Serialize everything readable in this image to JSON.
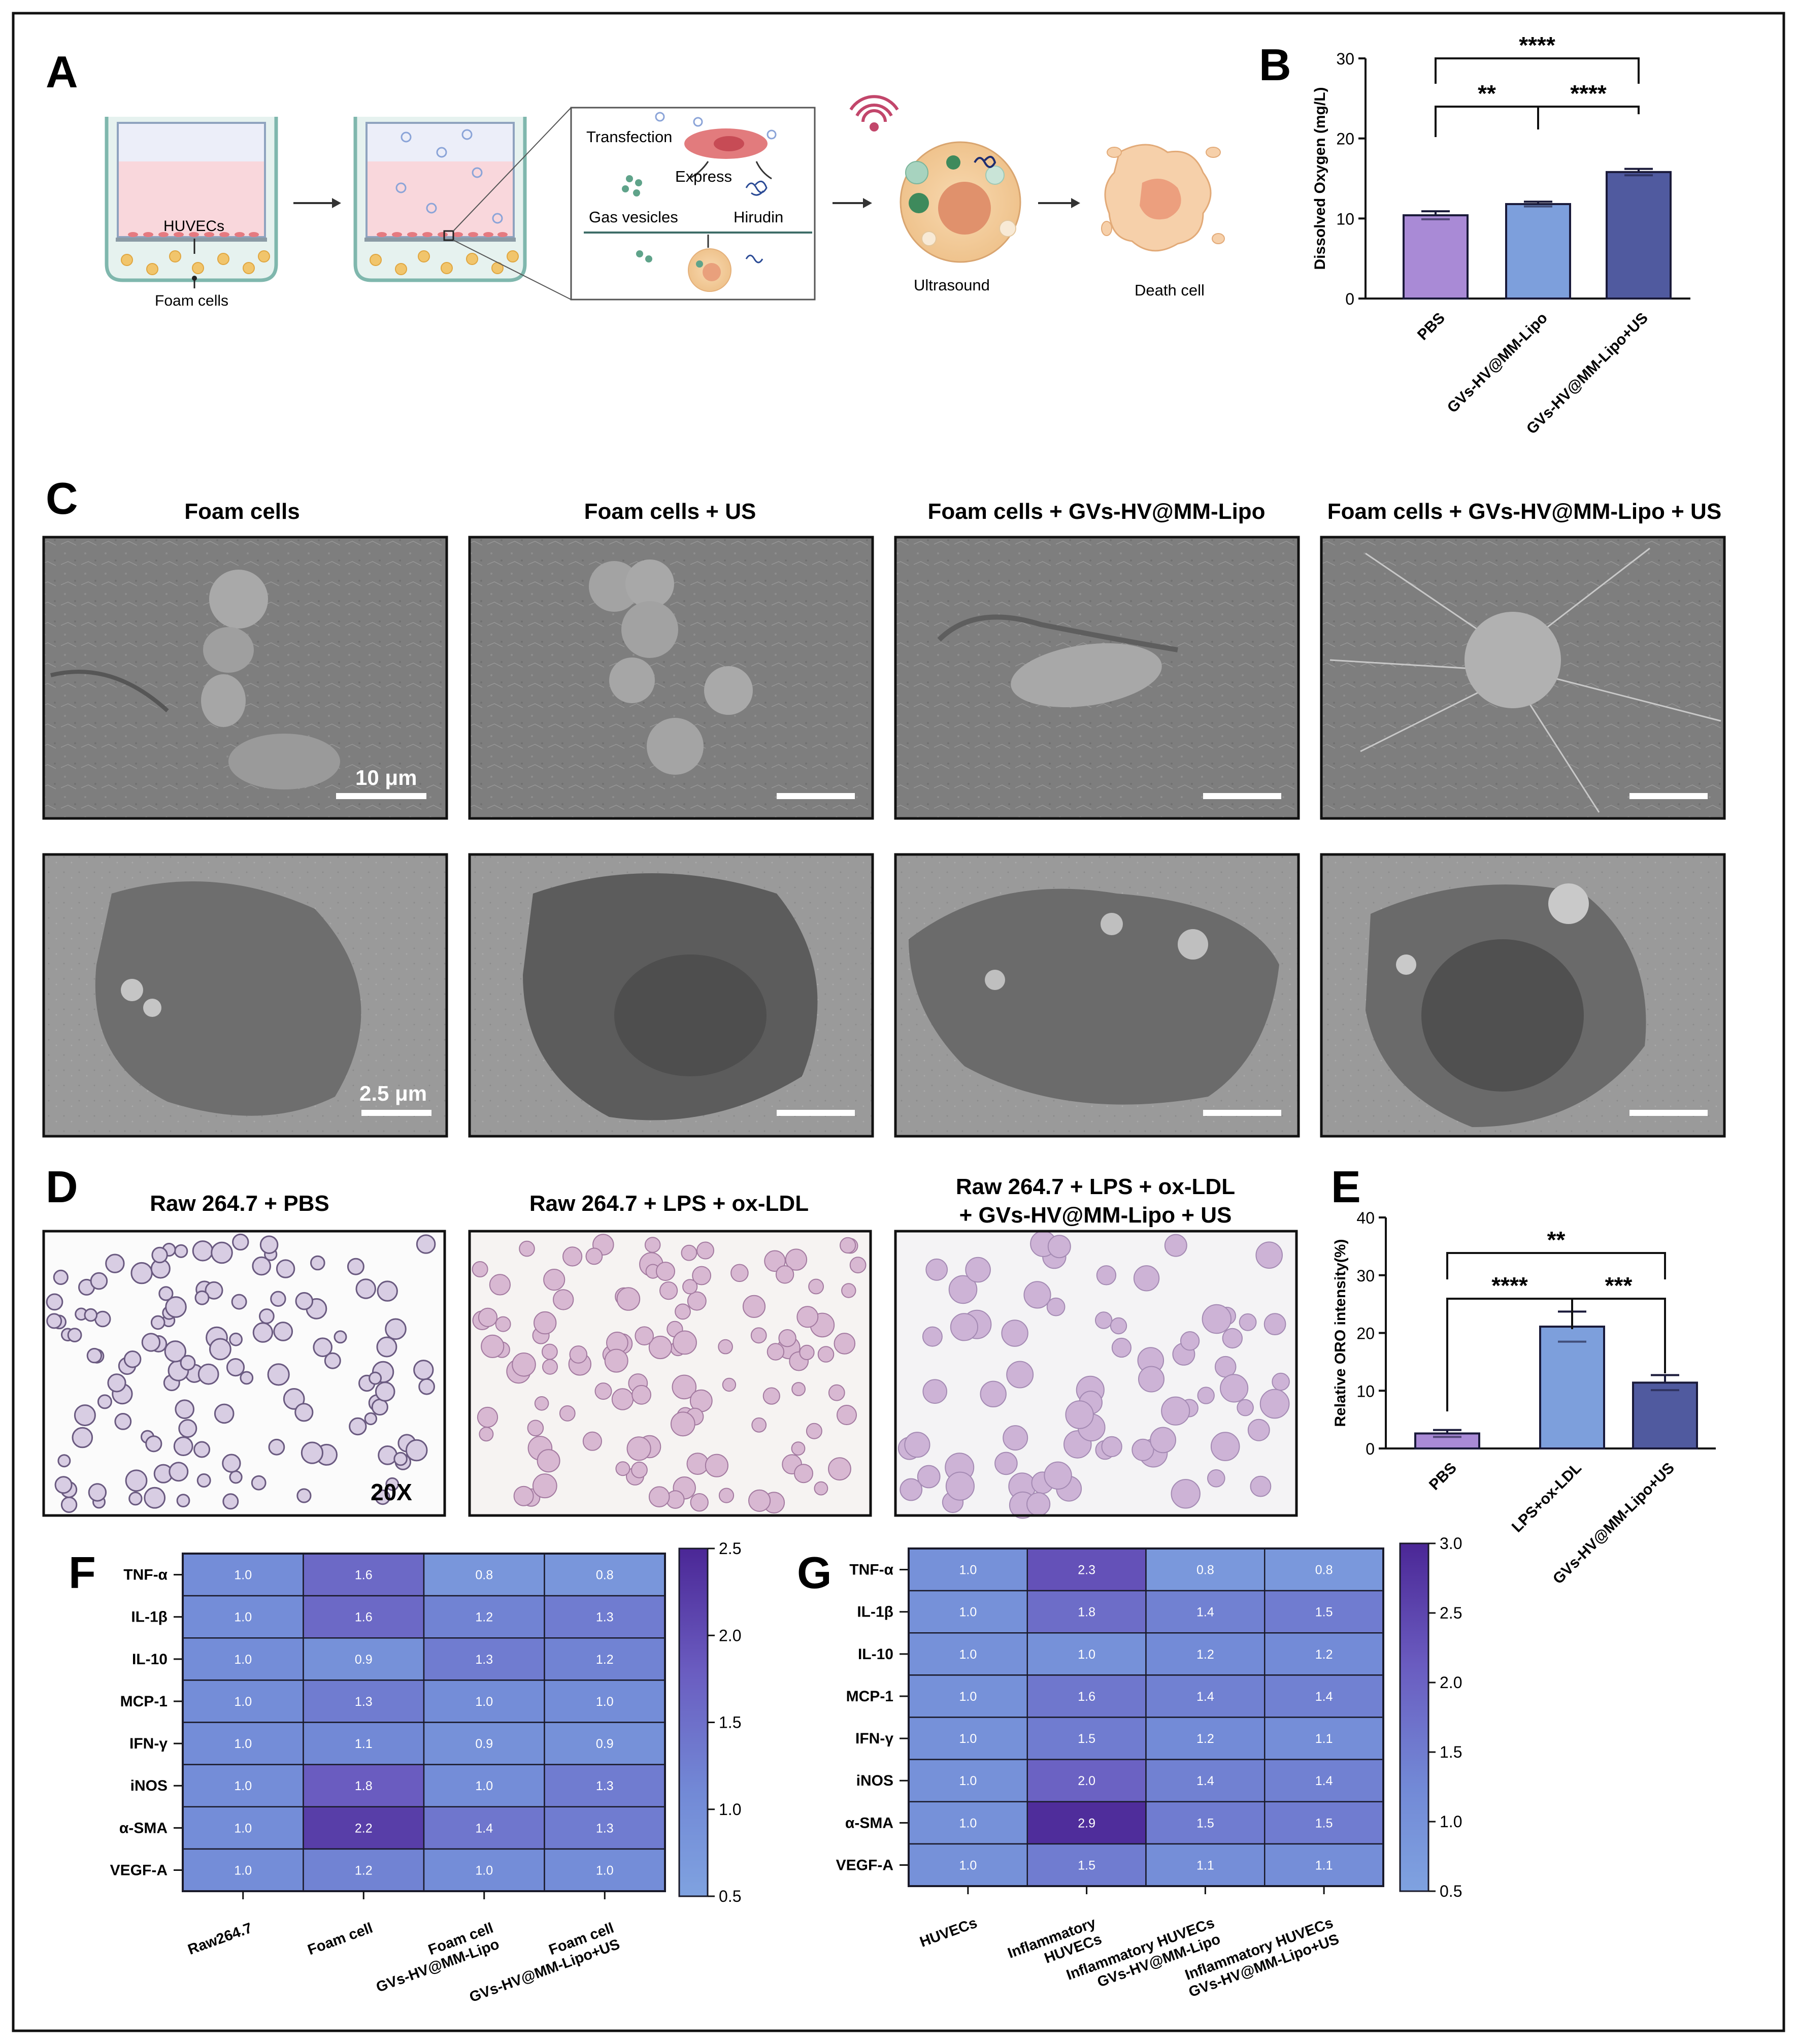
{
  "panels": {
    "A": {
      "letter": "A",
      "labels": {
        "huvecs": "HUVECs",
        "foam_cells": "Foam cells",
        "transfection": "Transfection",
        "express": "Express",
        "gas_vesicles": "Gas vesicles",
        "hirudin": "Hirudin",
        "ultrasound": "Ultrasound",
        "death_cell": "Death cell"
      }
    },
    "B": {
      "letter": "B",
      "sig": [
        "****",
        "**",
        "****"
      ],
      "chart_data": {
        "type": "bar",
        "categories": [
          "PBS",
          "GVs-HV@MM-Lipo",
          "GVs-HV@MM-Lipo+US"
        ],
        "values": [
          10.4,
          11.8,
          15.8
        ],
        "errors": [
          0.5,
          0.3,
          0.4
        ],
        "colors": [
          "#a98ad6",
          "#7d9fdc",
          "#505a9f"
        ],
        "ylabel": "Dissolved Oxygen (mg/L)",
        "ylim": [
          0,
          30
        ],
        "yticks": [
          0,
          10,
          20,
          30
        ]
      }
    },
    "C": {
      "letter": "C",
      "titles": [
        "Foam cells",
        "Foam cells + US",
        "Foam cells + GVs-HV@MM-Lipo",
        "Foam cells + GVs-HV@MM-Lipo + US"
      ],
      "scale_sem": "10 μm",
      "scale_tem": "2.5 μm"
    },
    "D": {
      "letter": "D",
      "titles": [
        "Raw 264.7 + PBS",
        "Raw 264.7 + LPS + ox-LDL"
      ],
      "title3_line1": "Raw 264.7 + LPS + ox-LDL",
      "title3_line2": "+ GVs-HV@MM-Lipo + US",
      "magnification": "20X"
    },
    "E": {
      "letter": "E",
      "sig": [
        "**",
        "****",
        "***"
      ],
      "chart_data": {
        "type": "bar",
        "categories": [
          "PBS",
          "LPS+ox-LDL",
          "GVs-HV@MM-Lipo+US"
        ],
        "values": [
          2.6,
          21.1,
          11.4
        ],
        "errors": [
          0.6,
          2.6,
          1.3
        ],
        "colors": [
          "#a98ad6",
          "#7d9fdc",
          "#505a9f"
        ],
        "ylabel": "Relative ORO intensity(%)",
        "ylim": [
          0,
          40
        ],
        "yticks": [
          0,
          10,
          20,
          30,
          40
        ]
      }
    },
    "F": {
      "letter": "F",
      "chart_data": {
        "type": "heatmap",
        "rows": [
          "TNF-α",
          "IL-1β",
          "IL-10",
          "MCP-1",
          "IFN-γ",
          "iNOS",
          "α-SMA",
          "VEGF-A"
        ],
        "columns": [
          [
            "Raw264.7"
          ],
          [
            "Foam cell"
          ],
          [
            "Foam cell",
            "GVs-HV@MM-Lipo"
          ],
          [
            "Foam cell",
            "GVs-HV@MM-Lipo+US"
          ]
        ],
        "values": [
          [
            1.0,
            1.6,
            0.8,
            0.8
          ],
          [
            1.0,
            1.6,
            1.2,
            1.3
          ],
          [
            1.0,
            0.9,
            1.3,
            1.2
          ],
          [
            1.0,
            1.3,
            1.0,
            1.0
          ],
          [
            1.0,
            1.1,
            0.9,
            0.9
          ],
          [
            1.0,
            1.8,
            1.0,
            1.3
          ],
          [
            1.0,
            2.2,
            1.4,
            1.3
          ],
          [
            1.0,
            1.2,
            1.0,
            1.0
          ]
        ],
        "colorbar_ticks": [
          "2.5",
          "2.0",
          "1.5",
          "1.0",
          "0.5"
        ],
        "range": [
          0.5,
          2.5
        ]
      }
    },
    "G": {
      "letter": "G",
      "chart_data": {
        "type": "heatmap",
        "rows": [
          "TNF-α",
          "IL-1β",
          "IL-10",
          "MCP-1",
          "IFN-γ",
          "iNOS",
          "α-SMA",
          "VEGF-A"
        ],
        "columns": [
          [
            "HUVECs"
          ],
          [
            "Inflammatory",
            "HUVECs"
          ],
          [
            "Inflammatory HUVECs",
            "GVs-HV@MM-Lipo"
          ],
          [
            "Inflammatory HUVECs",
            "GVs-HV@MM-Lipo+US"
          ]
        ],
        "values": [
          [
            1.0,
            2.3,
            0.8,
            0.8
          ],
          [
            1.0,
            1.8,
            1.4,
            1.5
          ],
          [
            1.0,
            1.0,
            1.2,
            1.2
          ],
          [
            1.0,
            1.6,
            1.4,
            1.4
          ],
          [
            1.0,
            1.5,
            1.2,
            1.1
          ],
          [
            1.0,
            2.0,
            1.4,
            1.4
          ],
          [
            1.0,
            2.9,
            1.5,
            1.5
          ],
          [
            1.0,
            1.5,
            1.1,
            1.1
          ]
        ],
        "colorbar_ticks": [
          "3.0",
          "2.5",
          "2.0",
          "1.5",
          "1.0",
          "0.5"
        ],
        "range": [
          0.5,
          3.0
        ]
      }
    }
  }
}
